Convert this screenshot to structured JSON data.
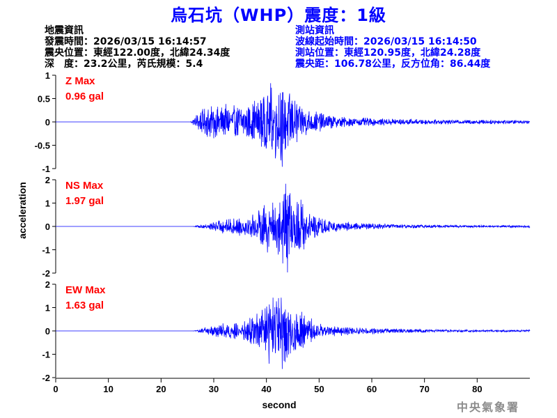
{
  "title": "烏石坑（WHP）震度：1級",
  "earthquake_info": {
    "heading": "地震資訊",
    "time": "發震時間：2026/03/15 16:14:57",
    "epicenter": "震央位置：東經122.00度，北緯24.34度",
    "depth_mag": "深　度：23.2公里，芮氏規模：5.4"
  },
  "station_info": {
    "heading": "測站資訊",
    "wave_start": "波線起始時間：2026/03/15 16:14:50",
    "location": "測站位置：東經120.95度，北緯24.28度",
    "distance": "震央距：106.78公里，反方位角：86.44度"
  },
  "watermark": "中央氣象署",
  "colors": {
    "trace": "#0000ff",
    "label": "#ff0000",
    "title": "#0000ff",
    "axis": "#000000"
  },
  "chart_data": {
    "type": "line",
    "xlabel": "second",
    "ylabel": "acceleration",
    "xlim": [
      0,
      90
    ],
    "xticks": [
      0,
      10,
      20,
      30,
      40,
      50,
      60,
      70,
      80
    ],
    "panels": [
      {
        "name": "Z",
        "label": "Z Max",
        "max_text": "0.96 gal",
        "max_value": 0.96,
        "ylim": [
          -1,
          1
        ],
        "yticks": [
          1,
          0.5,
          0,
          -0.5,
          -1
        ],
        "ytick_labels": [
          "1",
          "0.5",
          "0",
          "-0.5",
          "-1"
        ],
        "envelope_t": [
          0,
          25.5,
          26,
          27,
          28,
          29,
          31,
          33,
          35,
          37,
          38,
          39,
          40,
          41,
          42,
          43,
          44,
          46,
          48,
          50,
          52,
          55,
          58,
          62,
          66,
          70,
          75,
          80,
          85,
          90
        ],
        "envelope_a": [
          0,
          0,
          0.05,
          0.25,
          0.35,
          0.4,
          0.4,
          0.38,
          0.4,
          0.45,
          0.55,
          0.7,
          0.85,
          0.9,
          0.95,
          0.96,
          0.8,
          0.45,
          0.3,
          0.22,
          0.15,
          0.12,
          0.1,
          0.08,
          0.07,
          0.06,
          0.05,
          0.05,
          0.05,
          0.04
        ]
      },
      {
        "name": "NS",
        "label": "NS Max",
        "max_text": "1.97 gal",
        "max_value": 1.97,
        "ylim": [
          -2,
          2
        ],
        "yticks": [
          2,
          1,
          0,
          -1,
          -2
        ],
        "ytick_labels": [
          "2",
          "1",
          "0",
          "-1",
          "-2"
        ],
        "envelope_t": [
          0,
          26,
          27,
          29,
          31,
          33,
          35,
          37,
          39,
          40,
          41,
          42,
          43,
          44,
          45,
          46,
          47,
          48,
          50,
          52,
          55,
          58,
          62,
          66,
          70,
          75,
          80,
          85,
          90
        ],
        "envelope_a": [
          0,
          0,
          0.05,
          0.15,
          0.3,
          0.35,
          0.4,
          0.5,
          0.9,
          1.3,
          1.6,
          1.7,
          1.85,
          1.97,
          1.6,
          1.4,
          1.2,
          0.8,
          0.5,
          0.3,
          0.2,
          0.15,
          0.12,
          0.1,
          0.08,
          0.06,
          0.05,
          0.05,
          0.05
        ]
      },
      {
        "name": "EW",
        "label": "EW Max",
        "max_text": "1.63 gal",
        "max_value": 1.63,
        "ylim": [
          -2,
          2
        ],
        "yticks": [
          2,
          1,
          0,
          -1,
          -2
        ],
        "ytick_labels": [
          "2",
          "1",
          "0",
          "-1",
          "-2"
        ],
        "envelope_t": [
          0,
          26,
          27,
          29,
          31,
          33,
          35,
          37,
          39,
          40,
          41,
          42,
          43,
          44,
          45,
          46,
          47,
          48,
          50,
          52,
          55,
          58,
          62,
          66,
          70,
          75,
          80,
          85,
          90
        ],
        "envelope_a": [
          0,
          0,
          0.05,
          0.2,
          0.35,
          0.35,
          0.4,
          0.6,
          0.95,
          1.4,
          1.5,
          1.55,
          1.63,
          1.45,
          1.2,
          1.0,
          0.8,
          0.6,
          0.4,
          0.25,
          0.2,
          0.15,
          0.12,
          0.1,
          0.08,
          0.06,
          0.05,
          0.05,
          0.05
        ]
      }
    ]
  }
}
